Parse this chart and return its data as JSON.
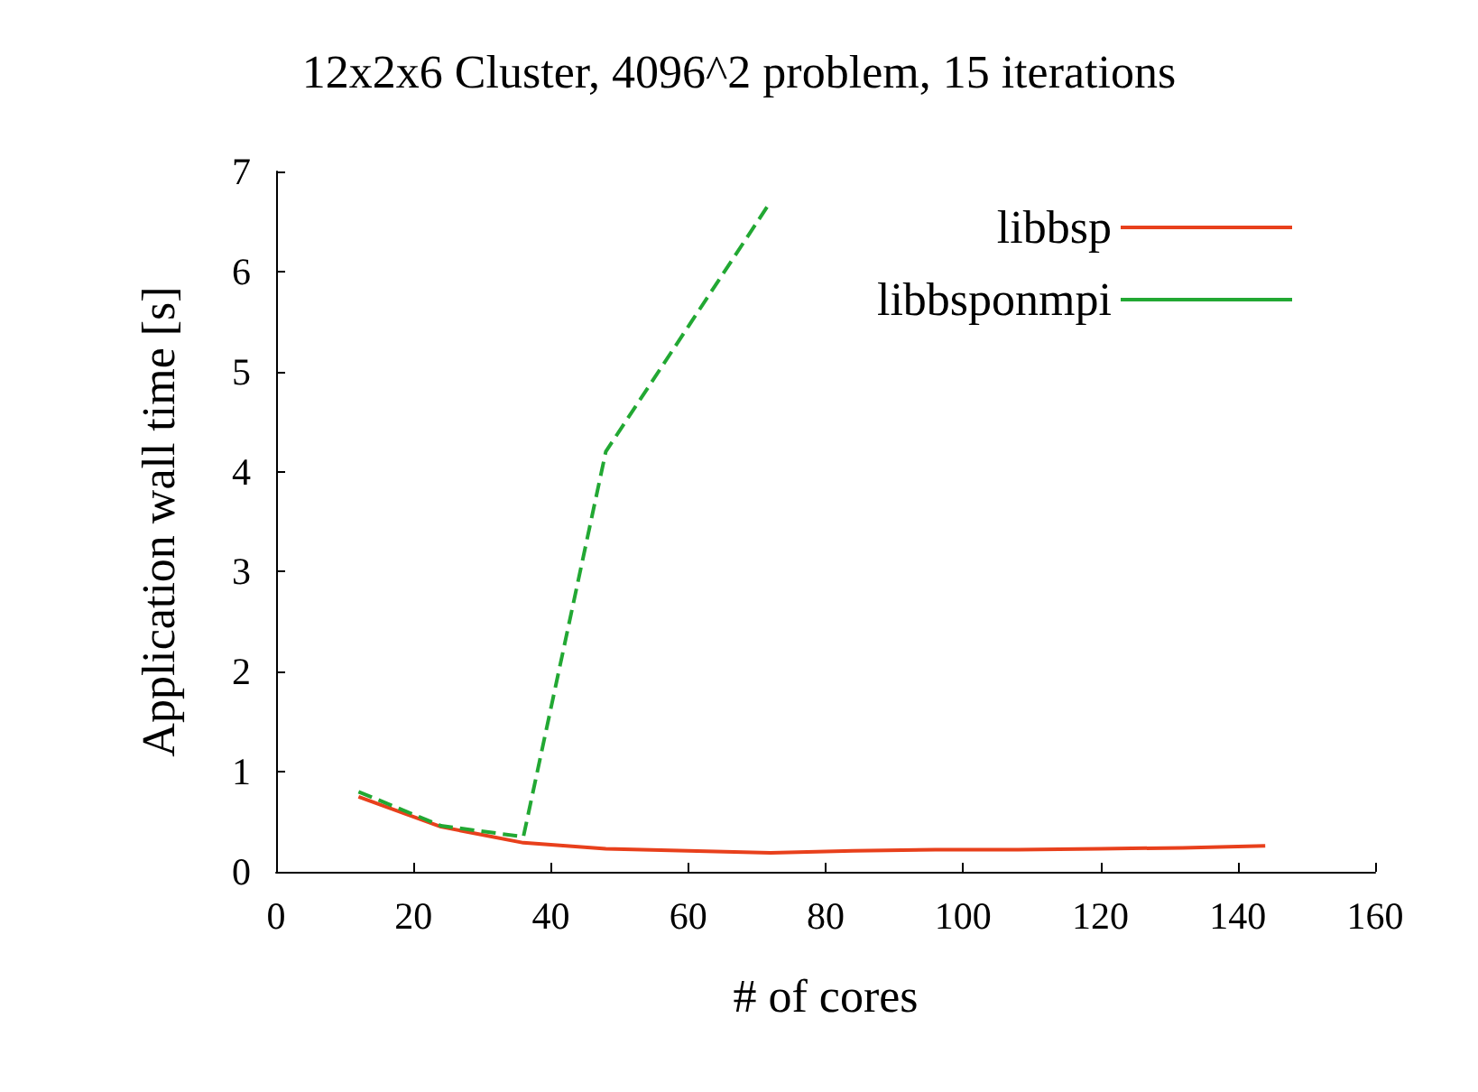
{
  "chart_data": {
    "type": "line",
    "title": "12x2x6 Cluster, 4096^2 problem, 15 iterations",
    "xlabel": "# of cores",
    "ylabel": "Application wall time [s]",
    "x": [
      12,
      24,
      36,
      48,
      60,
      72,
      84,
      96,
      108,
      120,
      132,
      144
    ],
    "series": [
      {
        "name": "libbsp",
        "color": "#e8401c",
        "line_style": "solid",
        "values": [
          0.75,
          0.45,
          0.29,
          0.23,
          0.21,
          0.19,
          0.21,
          0.22,
          0.22,
          0.23,
          0.24,
          0.26
        ]
      },
      {
        "name": "libbsponmpi",
        "color": "#22a833",
        "line_style": "dashed",
        "x": [
          12,
          24,
          36,
          48,
          60,
          72
        ],
        "values": [
          0.8,
          0.46,
          0.35,
          4.2,
          5.45,
          6.7
        ]
      }
    ],
    "xlim": [
      0,
      160
    ],
    "xticks": [
      0,
      20,
      40,
      60,
      80,
      100,
      120,
      140,
      160
    ],
    "ylim": [
      0,
      7
    ],
    "yticks": [
      0,
      1,
      2,
      3,
      4,
      5,
      6,
      7
    ],
    "grid": false,
    "legend": "top right",
    "marker": "none"
  }
}
